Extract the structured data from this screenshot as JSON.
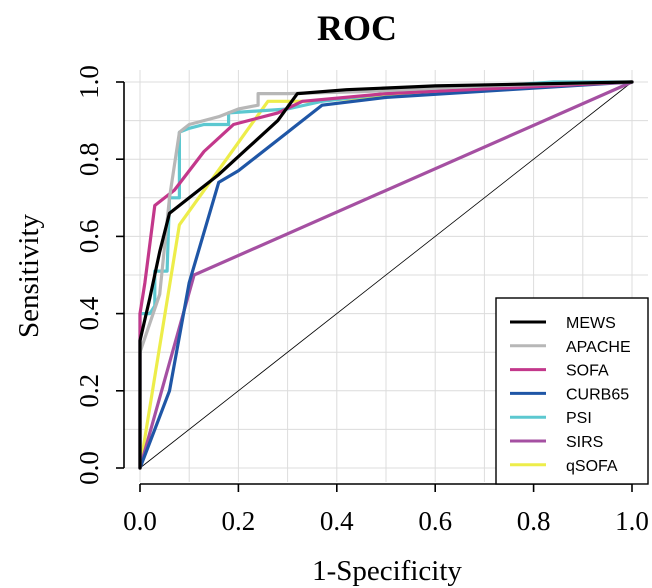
{
  "chart_data": {
    "type": "line",
    "title": "ROC",
    "xlabel": "1-Specificity",
    "ylabel": "Sensitivity",
    "xlim": [
      0,
      1
    ],
    "ylim": [
      0,
      1
    ],
    "xticks": [
      "0.0",
      "0.2",
      "0.4",
      "0.6",
      "0.8",
      "1.0"
    ],
    "yticks": [
      "0.0",
      "0.2",
      "0.4",
      "0.6",
      "0.8",
      "1.0"
    ],
    "grid": true,
    "reference_line": "diagonal",
    "legend_position": "bottom-right",
    "series": [
      {
        "name": "MEWS",
        "color": "#000000",
        "x": [
          0,
          0,
          0.02,
          0.04,
          0.06,
          0.1,
          0.16,
          0.22,
          0.28,
          0.32,
          0.42,
          0.6,
          1.0
        ],
        "y": [
          0,
          0.33,
          0.44,
          0.56,
          0.66,
          0.7,
          0.76,
          0.83,
          0.9,
          0.97,
          0.98,
          0.99,
          1.0
        ]
      },
      {
        "name": "APACHE",
        "color": "#b7b7b7",
        "x": [
          0,
          0,
          0.04,
          0.06,
          0.08,
          0.1,
          0.16,
          0.2,
          0.24,
          0.24,
          0.3,
          0.45,
          0.7,
          1.0
        ],
        "y": [
          0,
          0.3,
          0.45,
          0.7,
          0.87,
          0.89,
          0.91,
          0.93,
          0.94,
          0.97,
          0.97,
          0.975,
          0.99,
          1.0
        ]
      },
      {
        "name": "SOFA",
        "color": "#c3388b",
        "x": [
          0,
          0,
          0.01,
          0.03,
          0.07,
          0.13,
          0.19,
          0.28,
          0.33,
          0.5,
          1.0
        ],
        "y": [
          0,
          0.4,
          0.48,
          0.68,
          0.72,
          0.82,
          0.89,
          0.92,
          0.95,
          0.97,
          1.0
        ]
      },
      {
        "name": "CURB65",
        "color": "#1f56a6",
        "x": [
          0,
          0.03,
          0.06,
          0.1,
          0.16,
          0.2,
          0.3,
          0.37,
          0.5,
          0.75,
          1.0
        ],
        "y": [
          0,
          0.1,
          0.2,
          0.48,
          0.74,
          0.77,
          0.87,
          0.94,
          0.96,
          0.98,
          1.0
        ]
      },
      {
        "name": "PSI",
        "color": "#5cc8d0",
        "x": [
          0,
          0,
          0.02,
          0.03,
          0.03,
          0.055,
          0.06,
          0.08,
          0.08,
          0.1,
          0.13,
          0.18,
          0.18,
          0.3,
          0.37,
          0.5,
          0.84,
          1.0
        ],
        "y": [
          0,
          0.4,
          0.4,
          0.42,
          0.51,
          0.51,
          0.7,
          0.7,
          0.87,
          0.88,
          0.89,
          0.89,
          0.92,
          0.93,
          0.95,
          0.97,
          1.0,
          1.0
        ]
      },
      {
        "name": "SIRS",
        "color": "#a550a2",
        "x": [
          0,
          0.11,
          1.0
        ],
        "y": [
          0,
          0.5,
          1.0
        ]
      },
      {
        "name": "qSOFA",
        "color": "#eded4a",
        "x": [
          0,
          0.08,
          0.26,
          0.35,
          0.8,
          1.0
        ],
        "y": [
          0,
          0.63,
          0.95,
          0.95,
          0.99,
          1.0
        ]
      }
    ]
  }
}
